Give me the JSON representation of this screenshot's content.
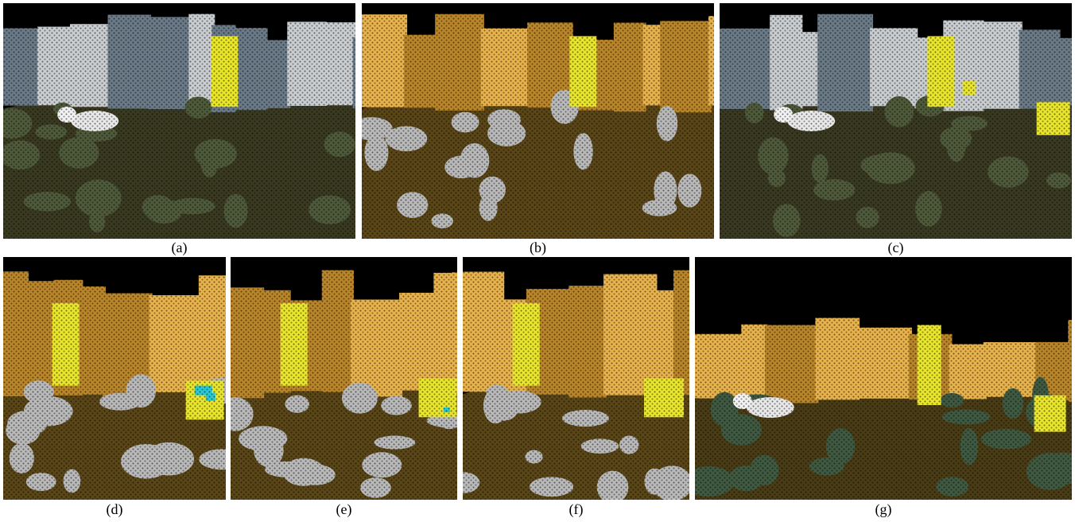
{
  "figure": {
    "panels": [
      {
        "id": "a",
        "caption": "(a)",
        "style": "rgb",
        "highlights": [
          "building-center"
        ]
      },
      {
        "id": "b",
        "caption": "(b)",
        "style": "segmented",
        "highlights": [
          "building-center"
        ]
      },
      {
        "id": "c",
        "caption": "(c)",
        "style": "rgb",
        "highlights": [
          "building-center",
          "small-block",
          "right-block"
        ]
      },
      {
        "id": "d",
        "caption": "(d)",
        "style": "segmented-close",
        "highlights": [
          "building-left",
          "right-block-cyan"
        ]
      },
      {
        "id": "e",
        "caption": "(e)",
        "style": "segmented-close",
        "highlights": [
          "building-left",
          "right-block-partial-cyan"
        ]
      },
      {
        "id": "f",
        "caption": "(f)",
        "style": "segmented-close",
        "highlights": [
          "building-left",
          "right-block"
        ]
      },
      {
        "id": "g",
        "caption": "(g)",
        "style": "segmented-rgb-mix",
        "highlights": [
          "building-center",
          "right-block"
        ]
      }
    ]
  },
  "colors": {
    "background": "#000000",
    "building_seg": "#e8b24a",
    "building_seg_dark": "#b98528",
    "highlight": "#e8e52a",
    "ground_seg": "#5a4616",
    "vegetation_seg": "#b9b9b9",
    "rgb_building": "#6a7a86",
    "rgb_building_light": "#c9cdd0",
    "rgb_ground": "#3a3a22",
    "rgb_vegetation": "#4e5a3a",
    "cyan": "#27c9d6"
  }
}
